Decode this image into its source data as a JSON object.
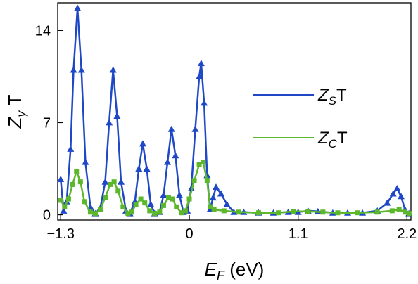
{
  "chart_data": {
    "type": "line",
    "xlabel": {
      "main": "E",
      "sub": "F",
      "rest": " (eV)"
    },
    "ylabel": {
      "main": "Z",
      "sub": "γ",
      "rest": " T"
    },
    "xlim": [
      -1.33,
      2.24
    ],
    "ylim": [
      -0.4,
      16.1
    ],
    "xticks": [
      -1.3,
      0,
      1.1,
      2.2
    ],
    "xtick_labels": [
      "−1.3",
      "0",
      "1.1",
      "2.2"
    ],
    "yticks": [
      0,
      7,
      14
    ],
    "ytick_labels": [
      "0",
      "7",
      "14"
    ],
    "legend": {
      "position": "center-right"
    },
    "series": [
      {
        "name": {
          "main": "Z",
          "sub": "S",
          "rest": "T"
        },
        "color": "#1f48c6",
        "marker": "triangle",
        "points": [
          [
            -1.3,
            2.7
          ],
          [
            -1.27,
            0.3
          ],
          [
            -1.24,
            1.0
          ],
          [
            -1.2,
            5.0
          ],
          [
            -1.17,
            11.0
          ],
          [
            -1.13,
            15.7
          ],
          [
            -1.09,
            11.0
          ],
          [
            -1.05,
            4.0
          ],
          [
            -1.0,
            0.6
          ],
          [
            -0.95,
            0.1
          ],
          [
            -0.9,
            0.5
          ],
          [
            -0.85,
            2.5
          ],
          [
            -0.81,
            7.0
          ],
          [
            -0.77,
            11.0
          ],
          [
            -0.73,
            7.5
          ],
          [
            -0.69,
            2.5
          ],
          [
            -0.64,
            0.3
          ],
          [
            -0.6,
            0.1
          ],
          [
            -0.55,
            1.0
          ],
          [
            -0.51,
            3.5
          ],
          [
            -0.47,
            5.4
          ],
          [
            -0.43,
            3.5
          ],
          [
            -0.39,
            0.8
          ],
          [
            -0.35,
            0.1
          ],
          [
            -0.3,
            0.2
          ],
          [
            -0.26,
            1.5
          ],
          [
            -0.22,
            4.0
          ],
          [
            -0.18,
            6.5
          ],
          [
            -0.14,
            4.5
          ],
          [
            -0.1,
            1.5
          ],
          [
            -0.06,
            0.2
          ],
          [
            -0.02,
            0.3
          ],
          [
            0.02,
            2.0
          ],
          [
            0.06,
            6.5
          ],
          [
            0.1,
            10.5
          ],
          [
            0.12,
            11.5
          ],
          [
            0.15,
            8.5
          ],
          [
            0.18,
            3.0
          ],
          [
            0.21,
            0.4
          ],
          [
            0.24,
            1.3
          ],
          [
            0.27,
            2.1
          ],
          [
            0.32,
            1.6
          ],
          [
            0.38,
            0.8
          ],
          [
            0.45,
            0.2
          ],
          [
            0.55,
            0.2
          ],
          [
            0.7,
            0.15
          ],
          [
            0.85,
            0.15
          ],
          [
            1.0,
            0.2
          ],
          [
            1.1,
            0.2
          ],
          [
            1.2,
            0.3
          ],
          [
            1.3,
            0.25
          ],
          [
            1.45,
            0.15
          ],
          [
            1.6,
            0.15
          ],
          [
            1.75,
            0.15
          ],
          [
            1.9,
            0.3
          ],
          [
            2.0,
            0.9
          ],
          [
            2.06,
            1.6
          ],
          [
            2.1,
            2.0
          ],
          [
            2.14,
            1.4
          ],
          [
            2.18,
            0.4
          ],
          [
            2.22,
            0.1
          ]
        ]
      },
      {
        "name": {
          "main": "Z",
          "sub": "C",
          "rest": "T"
        },
        "color": "#5cb82a",
        "marker": "square",
        "points": [
          [
            -1.3,
            1.1
          ],
          [
            -1.26,
            0.6
          ],
          [
            -1.22,
            1.2
          ],
          [
            -1.18,
            2.3
          ],
          [
            -1.14,
            3.3
          ],
          [
            -1.1,
            2.5
          ],
          [
            -1.06,
            1.0
          ],
          [
            -1.0,
            0.2
          ],
          [
            -0.95,
            0.1
          ],
          [
            -0.9,
            0.4
          ],
          [
            -0.85,
            1.3
          ],
          [
            -0.8,
            2.3
          ],
          [
            -0.76,
            2.5
          ],
          [
            -0.72,
            1.8
          ],
          [
            -0.67,
            0.6
          ],
          [
            -0.62,
            0.1
          ],
          [
            -0.58,
            0.2
          ],
          [
            -0.54,
            0.8
          ],
          [
            -0.49,
            1.2
          ],
          [
            -0.45,
            0.9
          ],
          [
            -0.4,
            0.3
          ],
          [
            -0.35,
            0.1
          ],
          [
            -0.3,
            0.2
          ],
          [
            -0.26,
            0.7
          ],
          [
            -0.21,
            1.3
          ],
          [
            -0.17,
            1.2
          ],
          [
            -0.13,
            0.6
          ],
          [
            -0.08,
            0.15
          ],
          [
            -0.04,
            0.3
          ],
          [
            0.0,
            1.2
          ],
          [
            0.05,
            2.6
          ],
          [
            0.1,
            3.8
          ],
          [
            0.14,
            4.0
          ],
          [
            0.18,
            2.6
          ],
          [
            0.21,
            0.6
          ],
          [
            0.25,
            0.4
          ],
          [
            0.35,
            0.3
          ],
          [
            0.5,
            0.2
          ],
          [
            0.7,
            0.15
          ],
          [
            0.9,
            0.15
          ],
          [
            1.05,
            0.25
          ],
          [
            1.2,
            0.25
          ],
          [
            1.35,
            0.2
          ],
          [
            1.5,
            0.15
          ],
          [
            1.7,
            0.15
          ],
          [
            1.9,
            0.2
          ],
          [
            2.05,
            0.3
          ],
          [
            2.12,
            0.4
          ],
          [
            2.18,
            0.2
          ],
          [
            2.22,
            0.1
          ]
        ]
      }
    ]
  }
}
